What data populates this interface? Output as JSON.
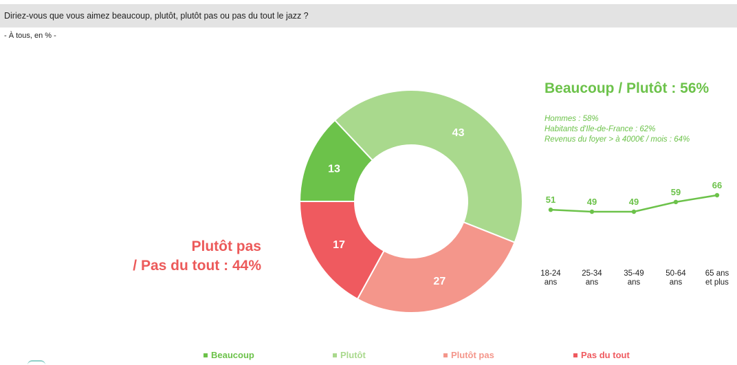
{
  "question": "Diriez-vous que vous aimez beaucoup, plutôt, plutôt pas ou pas du tout le jazz ?",
  "base": "- À tous, en % -",
  "chart_data": [
    {
      "type": "pie",
      "categories": [
        "Beaucoup",
        "Plutôt",
        "Plutôt pas",
        "Pas du tout"
      ],
      "values": [
        13,
        43,
        27,
        17
      ],
      "colors": [
        "#6cc24a",
        "#a9d98d",
        "#f4968b",
        "#ef5a5f"
      ],
      "donut": true,
      "legend": "bottom"
    },
    {
      "type": "line",
      "categories": [
        "18-24 ans",
        "25-34 ans",
        "35-49 ans",
        "50-64 ans",
        "65 ans et plus"
      ],
      "values": [
        51,
        49,
        49,
        59,
        66
      ],
      "color": "#6cc24a"
    }
  ],
  "positive_summary": "Beaucoup / Plutôt : 56%",
  "negative_summary_line1": "Plutôt pas",
  "negative_summary_line2": "/ Pas du tout : 44%",
  "sub_notes": [
    "Hommes : 58%",
    "Habitants d'Ile-de-France : 62%",
    "Revenus du foyer > à 4000€ / mois : 64%"
  ],
  "age_labels": [
    {
      "line1": "18-24",
      "line2": "ans"
    },
    {
      "line1": "25-34",
      "line2": "ans"
    },
    {
      "line1": "35-49",
      "line2": "ans"
    },
    {
      "line1": "50-64",
      "line2": "ans"
    },
    {
      "line1": "65 ans",
      "line2": "et plus"
    }
  ],
  "legend": [
    {
      "label": "Beaucoup",
      "color": "#6cc24a"
    },
    {
      "label": "Plutôt",
      "color": "#a9d98d"
    },
    {
      "label": "Plutôt pas",
      "color": "#f4968b"
    },
    {
      "label": "Pas du tout",
      "color": "#ef5a5f"
    }
  ]
}
